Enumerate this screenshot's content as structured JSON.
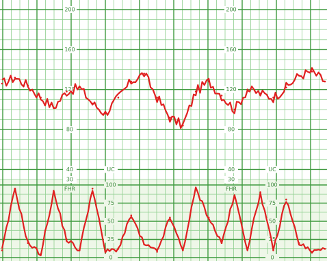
{
  "chart_data": [
    {
      "type": "line",
      "panel": "fetal heart rate",
      "scale_labels": [
        "200",
        "160",
        "120",
        "80",
        "40",
        "30"
      ],
      "scale_labels_repeat": [
        "200",
        "160",
        "120",
        "80",
        "40",
        "30"
      ],
      "side_label": "FHR",
      "ylim": [
        30,
        200
      ],
      "x": [
        0,
        4,
        8,
        12,
        16,
        20,
        24,
        28,
        32,
        36,
        40,
        44,
        48,
        52,
        56,
        60,
        64,
        68,
        72,
        76,
        80,
        84,
        88,
        92,
        96,
        100
      ],
      "series": [
        {
          "values": [
            126,
            132,
            124,
            112,
            102,
            118,
            122,
            106,
            96,
            112,
            128,
            136,
            112,
            92,
            84,
            118,
            128,
            114,
            100,
            120,
            116,
            112,
            122,
            134,
            138,
            128
          ]
        }
      ],
      "color": "#e02020",
      "grid": true
    },
    {
      "type": "line",
      "panel": "uterine contractions",
      "scale_labels": [
        "UC",
        "100",
        "75",
        "50",
        "25",
        "0"
      ],
      "scale_labels_repeat": [
        "UC",
        "100",
        "75",
        "50",
        "25",
        "0"
      ],
      "side_label": "FHR",
      "ylim": [
        0,
        100
      ],
      "x": [
        0,
        4,
        8,
        12,
        16,
        20,
        24,
        28,
        32,
        36,
        40,
        44,
        48,
        52,
        56,
        60,
        64,
        68,
        72,
        76,
        80,
        84,
        88,
        92,
        96,
        100
      ],
      "series": [
        {
          "values": [
            10,
            95,
            20,
            5,
            90,
            25,
            10,
            95,
            8,
            12,
            58,
            18,
            8,
            55,
            10,
            95,
            55,
            20,
            85,
            12,
            90,
            10,
            80,
            20,
            8,
            12
          ]
        }
      ],
      "color": "#e02020",
      "grid": true
    }
  ]
}
